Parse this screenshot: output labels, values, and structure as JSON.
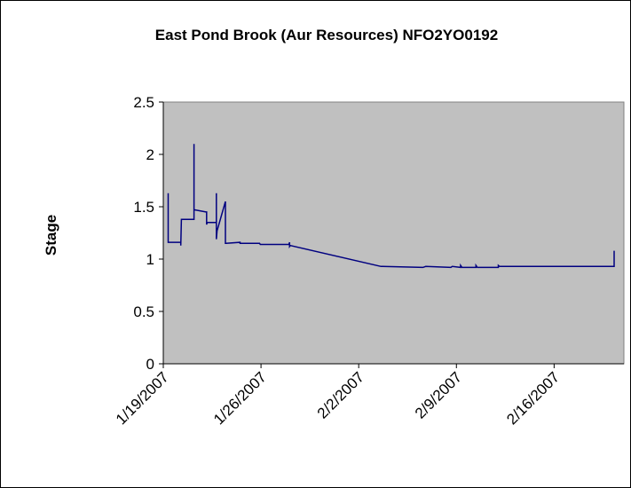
{
  "chart_data": {
    "type": "line",
    "title": "East Pond Brook (Aur Resources) NFO2YO0192",
    "xlabel": "",
    "ylabel": "Stage",
    "ylim": [
      0,
      2.5
    ],
    "y_ticks": [
      "0",
      "0.5",
      "1",
      "1.5",
      "2",
      "2.5"
    ],
    "x_ticks": [
      "1/19/2007",
      "1/26/2007",
      "2/2/2007",
      "2/9/2007",
      "2/16/2007"
    ],
    "x_tick_values": [
      0,
      7,
      14,
      21,
      28
    ],
    "x_range_days": [
      0,
      33
    ],
    "grid": false,
    "legend": "none",
    "colors": {
      "plot_background": "#c0c0c0",
      "series": "#000080"
    },
    "series": [
      {
        "x_days_from_1_19_2007": [
          0.35,
          0.35,
          0.35,
          1.25,
          1.25,
          1.3,
          1.35,
          2.2,
          2.2,
          2.2,
          2.25,
          3.05,
          3.1,
          3.1,
          3.15,
          3.8,
          3.8,
          3.8,
          3.85,
          4.45,
          4.45,
          4.5,
          5.5,
          5.5,
          5.55,
          6.9,
          6.95,
          9.0,
          9.05,
          9.05,
          9.1,
          15.6,
          15.7,
          18.6,
          18.8,
          20.6,
          20.7,
          21.3,
          21.3,
          21.4,
          22.4,
          22.4,
          22.5,
          24.0,
          24.0,
          24.1,
          32.0,
          32.05,
          32.1,
          32.3,
          32.3
        ],
        "y_values": [
          1.63,
          1.16,
          1.16,
          1.16,
          1.13,
          1.38,
          1.38,
          1.38,
          2.1,
          1.47,
          1.47,
          1.45,
          1.45,
          1.33,
          1.35,
          1.35,
          1.63,
          1.19,
          1.27,
          1.55,
          1.15,
          1.15,
          1.16,
          1.15,
          1.15,
          1.15,
          1.14,
          1.14,
          1.16,
          1.12,
          1.13,
          0.93,
          0.93,
          0.92,
          0.93,
          0.92,
          0.93,
          0.92,
          0.94,
          0.92,
          0.92,
          0.94,
          0.92,
          0.92,
          0.94,
          0.93,
          0.93,
          0.93,
          0.93,
          0.93,
          1.08
        ]
      }
    ]
  }
}
